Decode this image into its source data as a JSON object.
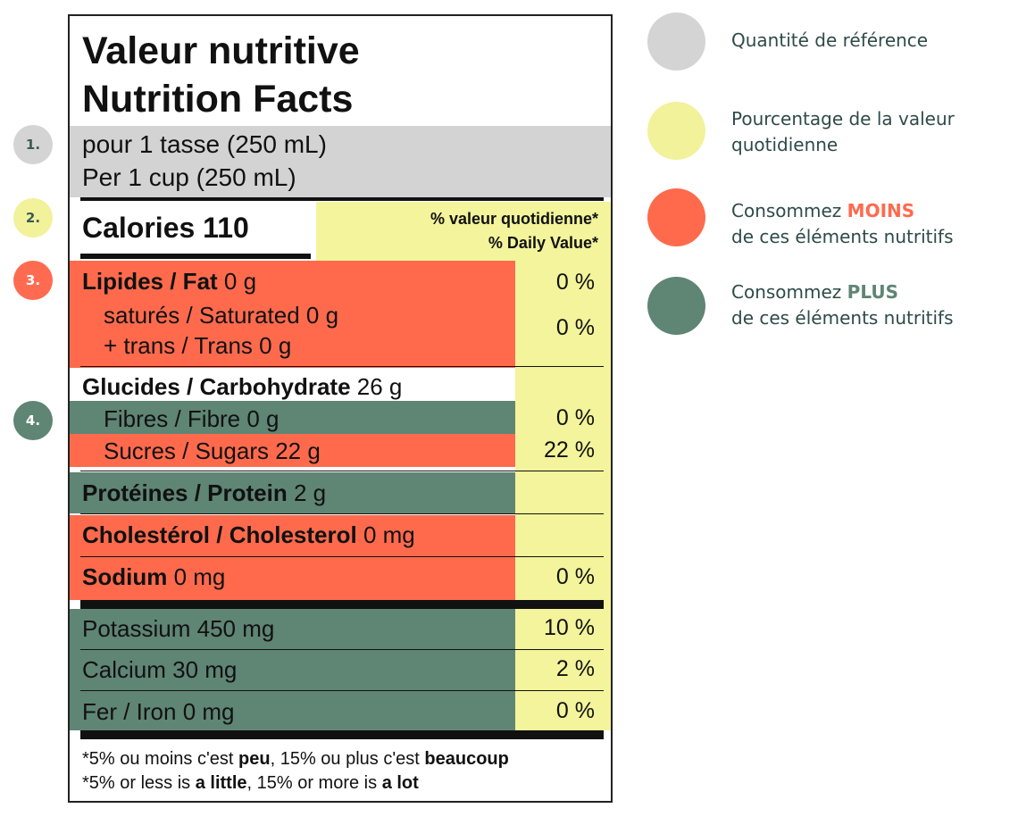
{
  "markers": [
    "1.",
    "2.",
    "3.",
    "4."
  ],
  "label": {
    "title_fr": "Valeur nutritive",
    "title_en": "Nutrition Facts",
    "serving_fr": "pour 1 tasse (250 mL)",
    "serving_en": "Per 1 cup (250 mL)",
    "calories": "Calories 110",
    "dv_fr": "% valeur quotidienne*",
    "dv_en": "% Daily Value*",
    "fat": {
      "name": "Lipides / Fat",
      "amount": "0 g",
      "pct": "0 %"
    },
    "saturated": {
      "label": "saturés / Saturated 0 g"
    },
    "trans": {
      "label": "+ trans / Trans 0 g"
    },
    "sat_trans_pct": "0 %",
    "carb": {
      "name": "Glucides / Carbohydrate",
      "amount": "26 g"
    },
    "fibre": {
      "label": "Fibres / Fibre 0 g",
      "pct": "0 %"
    },
    "sugars": {
      "label": "Sucres / Sugars 22 g",
      "pct": "22 %"
    },
    "protein": {
      "name": "Protéines / Protein",
      "amount": "2 g"
    },
    "cholesterol": {
      "name": "Cholestérol / Cholesterol",
      "amount": "0 mg"
    },
    "sodium": {
      "name": "Sodium",
      "amount": "0 mg",
      "pct": "0 %"
    },
    "potassium": {
      "label": "Potassium 450 mg",
      "pct": "10 %"
    },
    "calcium": {
      "label": "Calcium 30 mg",
      "pct": "2 %"
    },
    "iron": {
      "label": "Fer / Iron 0 mg",
      "pct": "0 %"
    },
    "footnote_fr": {
      "a": "*5% ou moins c'est ",
      "b": "peu",
      "c": ", 15% ou plus c'est ",
      "d": "beaucoup"
    },
    "footnote_en": {
      "a": "*5% or less is ",
      "b": "a little",
      "c": ", 15% or more is ",
      "d": "a lot"
    }
  },
  "legend": {
    "reference": "Quantité de référence",
    "dv_line1": "Pourcentage de la valeur",
    "dv_line2": "quotidienne",
    "less_pre": "Consommez ",
    "less_em": "MOINS",
    "less_line2": "de ces éléments nutritifs",
    "more_pre": "Consommez ",
    "more_em": "PLUS",
    "more_line2": "de ces éléments nutritifs"
  },
  "colors": {
    "grey": "#d3d3d3",
    "yellow": "#f3f49b",
    "red": "#ff6a4d",
    "green": "#5f8574",
    "text_dark": "#2e4b47"
  }
}
